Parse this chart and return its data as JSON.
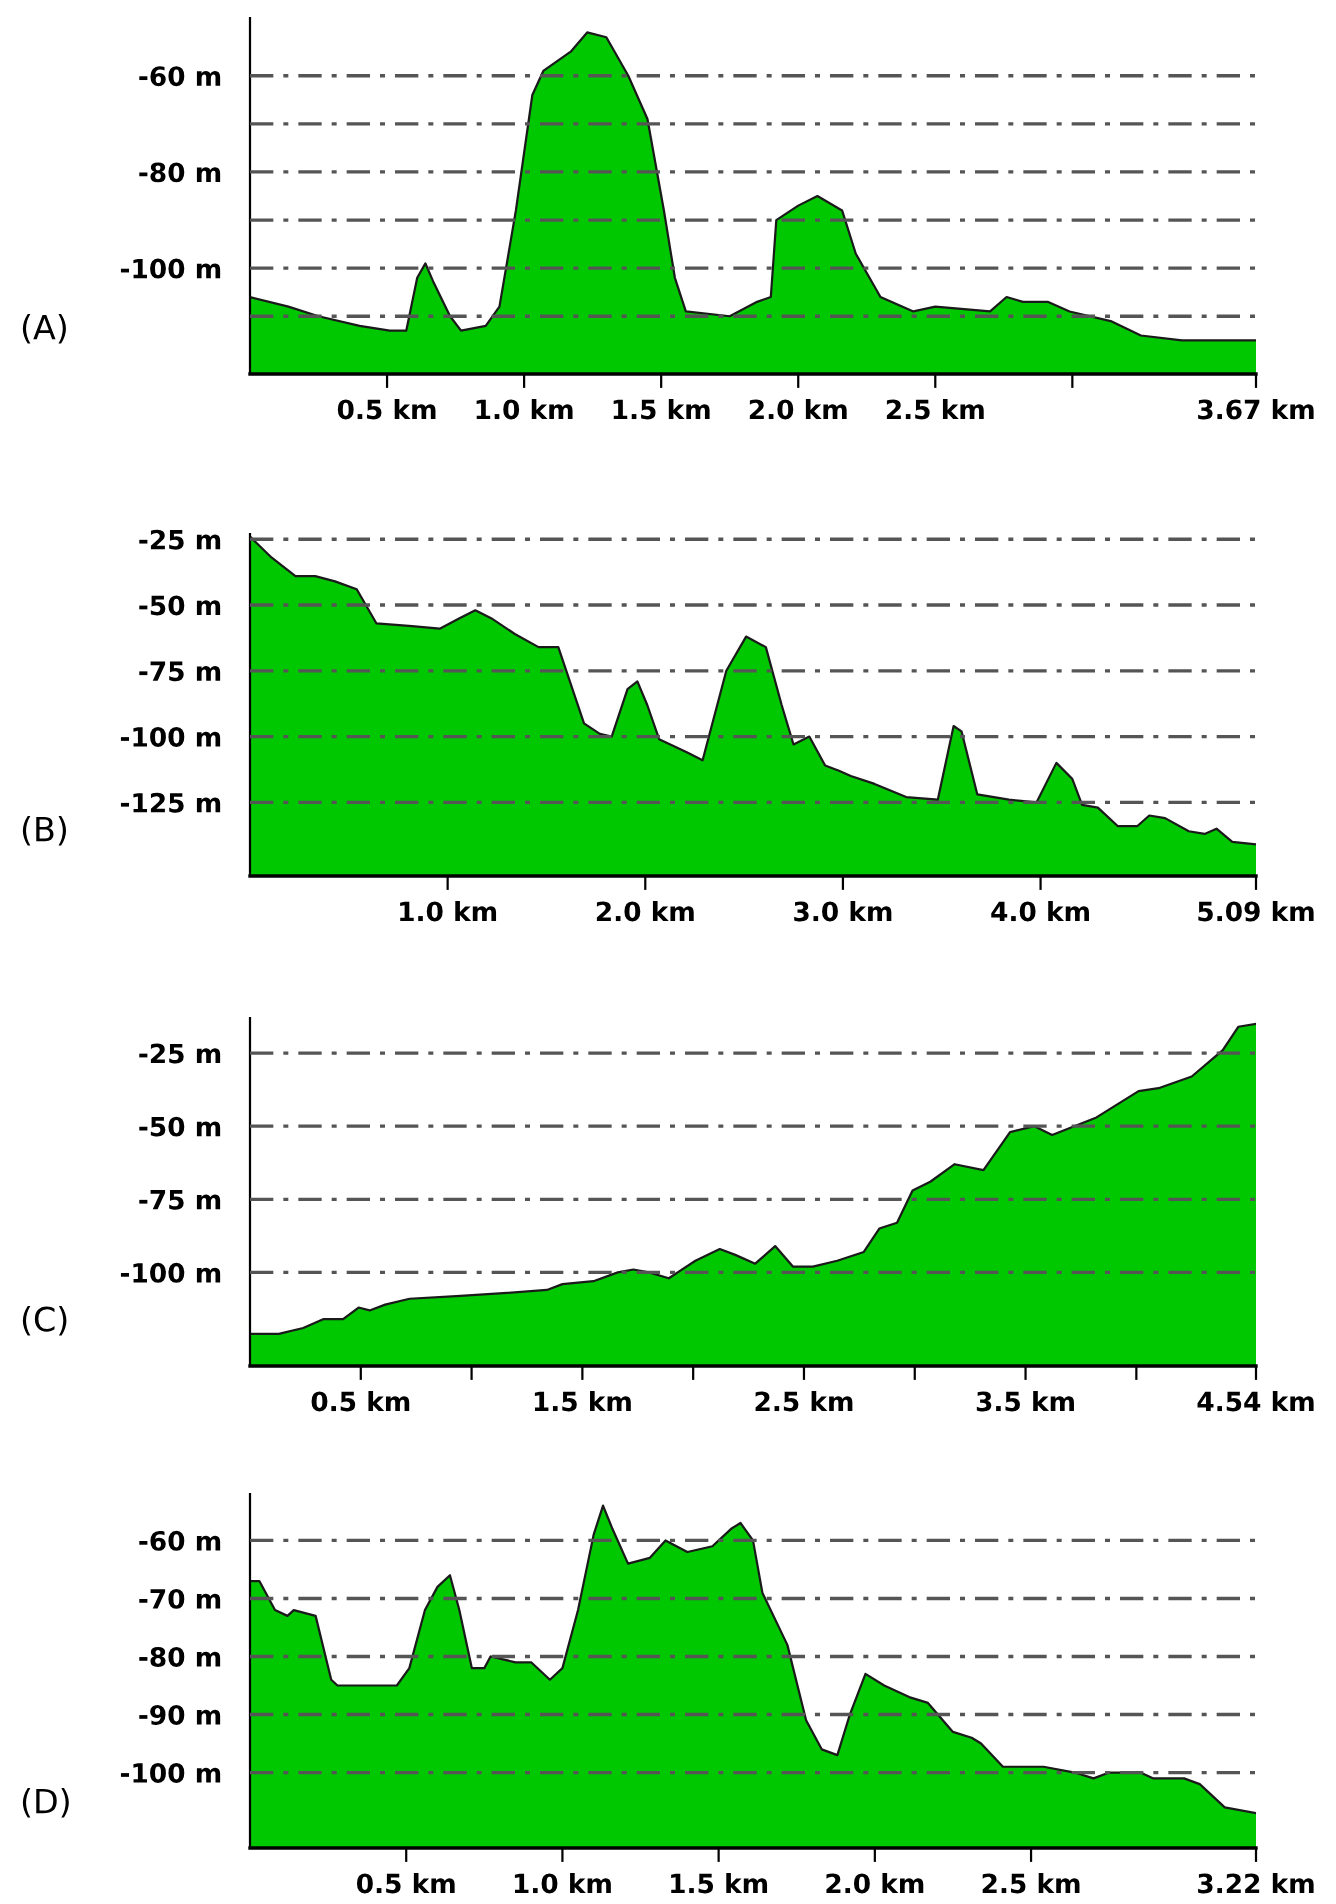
{
  "chart_data": [
    {
      "type": "area",
      "annotations": [
        "(A)"
      ],
      "grid": "y",
      "xlim": [
        0,
        3.67
      ],
      "ylim": [
        -122,
        -48
      ],
      "xticks": [
        {
          "value": 0.5,
          "label": "0.5 km"
        },
        {
          "value": 1.0,
          "label": "1.0 km"
        },
        {
          "value": 1.5,
          "label": "1.5 km"
        },
        {
          "value": 2.0,
          "label": "2.0 km"
        },
        {
          "value": 2.5,
          "label": "2.5 km"
        },
        {
          "value": 3.0,
          "label": null
        },
        {
          "value": 3.67,
          "label": "3.67 km"
        }
      ],
      "yticks": [
        {
          "value": -60,
          "label": "-60 m"
        },
        {
          "value": -70,
          "label": null
        },
        {
          "value": -80,
          "label": "-80 m"
        },
        {
          "value": -90,
          "label": null
        },
        {
          "value": -100,
          "label": "-100 m"
        },
        {
          "value": -110,
          "label": null
        }
      ],
      "series": [
        {
          "color": "#00c800",
          "x": [
            0,
            0.14,
            0.25,
            0.4,
            0.51,
            0.57,
            0.61,
            0.64,
            0.67,
            0.73,
            0.77,
            0.86,
            0.91,
            0.97,
            1.03,
            1.07,
            1.17,
            1.23,
            1.3,
            1.38,
            1.45,
            1.51,
            1.55,
            1.59,
            1.75,
            1.85,
            1.9,
            1.92,
            2.0,
            2.07,
            2.16,
            2.21,
            2.3,
            2.42,
            2.5,
            2.7,
            2.76,
            2.82,
            2.91,
            2.99,
            3.14,
            3.25,
            3.4,
            3.67
          ],
          "values": [
            -106,
            -108,
            -110,
            -112,
            -113,
            -113,
            -102,
            -99,
            -103,
            -110,
            -113,
            -112,
            -108,
            -88,
            -64,
            -59,
            -55,
            -51,
            -52,
            -60,
            -69,
            -88,
            -102,
            -109,
            -110,
            -107,
            -106,
            -90,
            -87,
            -85,
            -88,
            -97,
            -106,
            -109,
            -108,
            -109,
            -106,
            -107,
            -107,
            -109,
            -111,
            -114,
            -115,
            -115
          ]
        }
      ]
    },
    {
      "type": "area",
      "annotations": [
        "(B)"
      ],
      "grid": "y",
      "xlim": [
        0,
        5.09
      ],
      "ylim": [
        -153,
        -23
      ],
      "xticks": [
        {
          "value": 1.0,
          "label": "1.0 km"
        },
        {
          "value": 2.0,
          "label": "2.0 km"
        },
        {
          "value": 3.0,
          "label": "3.0 km"
        },
        {
          "value": 4.0,
          "label": "4.0 km"
        },
        {
          "value": 5.09,
          "label": "5.09 km"
        }
      ],
      "yticks": [
        {
          "value": -25,
          "label": "-25 m"
        },
        {
          "value": -50,
          "label": "-50 m"
        },
        {
          "value": -75,
          "label": "-75 m"
        },
        {
          "value": -100,
          "label": "-100 m"
        },
        {
          "value": -125,
          "label": "-125 m"
        }
      ],
      "series": [
        {
          "color": "#00c800",
          "x": [
            0,
            0.11,
            0.23,
            0.33,
            0.43,
            0.54,
            0.64,
            0.82,
            0.96,
            1.06,
            1.14,
            1.22,
            1.34,
            1.46,
            1.56,
            1.69,
            1.77,
            1.83,
            1.91,
            1.96,
            2.01,
            2.07,
            2.21,
            2.29,
            2.41,
            2.51,
            2.61,
            2.69,
            2.75,
            2.83,
            2.91,
            2.98,
            3.04,
            3.16,
            3.32,
            3.48,
            3.56,
            3.6,
            3.68,
            3.84,
            3.98,
            4.08,
            4.16,
            4.21,
            4.29,
            4.39,
            4.49,
            4.55,
            4.63,
            4.75,
            4.83,
            4.89,
            4.97,
            5.09
          ],
          "values": [
            -24,
            -32,
            -39,
            -39,
            -41,
            -44,
            -57,
            -58,
            -59,
            -55,
            -52,
            -55,
            -61,
            -66,
            -66,
            -95,
            -99,
            -100,
            -82,
            -79,
            -88,
            -101,
            -106,
            -109,
            -75,
            -62,
            -66,
            -88,
            -103,
            -100,
            -111,
            -113,
            -115,
            -118,
            -123,
            -124,
            -96,
            -98,
            -122,
            -124,
            -125,
            -110,
            -116,
            -126,
            -127,
            -134,
            -134,
            -130,
            -131,
            -136,
            -137,
            -135,
            -140,
            -141
          ]
        }
      ]
    },
    {
      "type": "area",
      "annotations": [
        "(C)"
      ],
      "grid": "y",
      "xlim": [
        0,
        4.54
      ],
      "ylim": [
        -132,
        -13
      ],
      "xticks": [
        {
          "value": 0.5,
          "label": "0.5 km"
        },
        {
          "value": 1.0,
          "label": null
        },
        {
          "value": 1.5,
          "label": "1.5 km"
        },
        {
          "value": 2.0,
          "label": null
        },
        {
          "value": 2.5,
          "label": "2.5 km"
        },
        {
          "value": 3.0,
          "label": null
        },
        {
          "value": 3.5,
          "label": "3.5 km"
        },
        {
          "value": 4.0,
          "label": null
        },
        {
          "value": 4.54,
          "label": "4.54 km"
        }
      ],
      "yticks": [
        {
          "value": -25,
          "label": "-25 m"
        },
        {
          "value": -50,
          "label": "-50 m"
        },
        {
          "value": -75,
          "label": "-75 m"
        },
        {
          "value": -100,
          "label": "-100 m"
        }
      ],
      "series": [
        {
          "color": "#00c800",
          "x": [
            0,
            0.13,
            0.24,
            0.33,
            0.42,
            0.49,
            0.54,
            0.61,
            0.72,
            0.95,
            1.16,
            1.34,
            1.41,
            1.55,
            1.66,
            1.73,
            1.8,
            1.89,
            2.01,
            2.12,
            2.19,
            2.28,
            2.37,
            2.45,
            2.54,
            2.65,
            2.77,
            2.84,
            2.92,
            2.99,
            3.07,
            3.18,
            3.31,
            3.43,
            3.54,
            3.62,
            3.82,
            4.01,
            4.1,
            4.25,
            4.39,
            4.46,
            4.54
          ],
          "values": [
            -121,
            -121,
            -119,
            -116,
            -116,
            -112,
            -113,
            -111,
            -109,
            -108,
            -107,
            -106,
            -104,
            -103,
            -100,
            -99,
            -100,
            -102,
            -96,
            -92,
            -94,
            -97,
            -91,
            -98,
            -98,
            -96,
            -93,
            -85,
            -83,
            -72,
            -69,
            -63,
            -65,
            -52,
            -50,
            -53,
            -47,
            -38,
            -37,
            -33,
            -24,
            -16,
            -15
          ]
        }
      ]
    },
    {
      "type": "area",
      "annotations": [
        "(D)"
      ],
      "grid": "y",
      "xlim": [
        0,
        3.22
      ],
      "ylim": [
        -113,
        -52
      ],
      "xticks": [
        {
          "value": 0.5,
          "label": "0.5 km"
        },
        {
          "value": 1.0,
          "label": "1.0 km"
        },
        {
          "value": 1.5,
          "label": "1.5 km"
        },
        {
          "value": 2.0,
          "label": "2.0 km"
        },
        {
          "value": 2.5,
          "label": "2.5 km"
        },
        {
          "value": 3.22,
          "label": "3.22 km"
        }
      ],
      "yticks": [
        {
          "value": -60,
          "label": "-60 m"
        },
        {
          "value": -70,
          "label": "-70 m"
        },
        {
          "value": -80,
          "label": "-80 m"
        },
        {
          "value": -90,
          "label": "-90 m"
        },
        {
          "value": -100,
          "label": "-100 m"
        }
      ],
      "series": [
        {
          "color": "#00c800",
          "x": [
            0,
            0.03,
            0.08,
            0.12,
            0.14,
            0.21,
            0.26,
            0.28,
            0.47,
            0.51,
            0.56,
            0.6,
            0.64,
            0.67,
            0.71,
            0.75,
            0.77,
            0.85,
            0.9,
            0.96,
            1.0,
            1.05,
            1.1,
            1.13,
            1.16,
            1.21,
            1.28,
            1.33,
            1.4,
            1.48,
            1.54,
            1.57,
            1.61,
            1.64,
            1.72,
            1.78,
            1.83,
            1.88,
            1.92,
            1.97,
            2.03,
            2.11,
            2.17,
            2.25,
            2.31,
            2.34,
            2.41,
            2.44,
            2.54,
            2.64,
            2.7,
            2.75,
            2.85,
            2.89,
            2.93,
            2.99,
            3.04,
            3.12,
            3.22
          ],
          "values": [
            -67,
            -67,
            -72,
            -73,
            -72,
            -73,
            -84,
            -85,
            -85,
            -82,
            -72,
            -68,
            -66,
            -72,
            -82,
            -82,
            -80,
            -81,
            -81,
            -84,
            -82,
            -72,
            -59,
            -54,
            -58,
            -64,
            -63,
            -60,
            -62,
            -61,
            -58,
            -57,
            -60,
            -69,
            -78,
            -91,
            -96,
            -97,
            -90,
            -83,
            -85,
            -87,
            -88,
            -93,
            -94,
            -95,
            -99,
            -99,
            -99,
            -100,
            -101,
            -100,
            -100,
            -101,
            -101,
            -101,
            -102,
            -106,
            -107
          ]
        }
      ]
    }
  ]
}
